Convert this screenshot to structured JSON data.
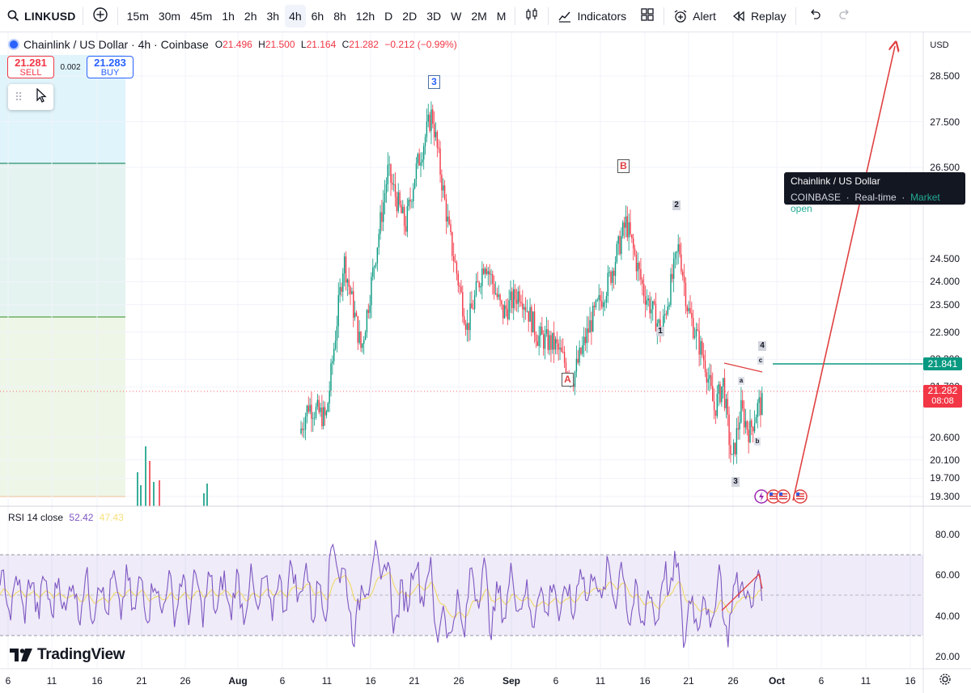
{
  "toolbar": {
    "symbol": "LINKUSD",
    "intervals": [
      "15m",
      "30m",
      "45m",
      "1h",
      "2h",
      "3h",
      "4h",
      "6h",
      "8h",
      "12h",
      "D",
      "2D",
      "3D",
      "W",
      "2M",
      "M"
    ],
    "active_interval": "4h",
    "indicators_label": "Indicators",
    "alert_label": "Alert",
    "replay_label": "Replay"
  },
  "legend": {
    "title": "Chainlink / US Dollar · 4h · Coinbase",
    "o_label": "O",
    "o": "21.496",
    "h_label": "H",
    "h": "21.500",
    "l_label": "L",
    "l": "21.164",
    "c_label": "C",
    "c": "21.282",
    "change": "−0.212 (−0.99%)"
  },
  "trade": {
    "sell_price": "21.281",
    "sell_label": "SELL",
    "spread": "0.002",
    "buy_price": "21.283",
    "buy_label": "BUY"
  },
  "tooltip": {
    "title": "Chainlink / US Dollar",
    "exchange": "COINBASE",
    "feed": "Real-time",
    "status": "Market open"
  },
  "currency": "USD",
  "price_scale": [
    "28.500",
    "27.500",
    "26.500",
    "24.500",
    "24.000",
    "23.500",
    "22.900",
    "22.300",
    "21.700",
    "20.600",
    "20.100",
    "19.700",
    "19.300"
  ],
  "price_tags": {
    "level": "21.841",
    "last": "21.282",
    "countdown": "08:08"
  },
  "rsi": {
    "label": "RSI 14 close",
    "value": "52.42",
    "ma_value": "47.43",
    "scale": [
      "80.00",
      "60.00",
      "40.00",
      "20.00"
    ]
  },
  "brand": "TradingView",
  "time_axis": [
    "6",
    "11",
    "16",
    "21",
    "26",
    "Aug",
    "6",
    "11",
    "16",
    "21",
    "26",
    "Sep",
    "6",
    "11",
    "16",
    "21",
    "26",
    "Oct",
    "6",
    "11",
    "16"
  ],
  "wave_labels": {
    "w3_top": "3",
    "wB": "B",
    "wA": "A",
    "w2": "2",
    "w1": "1",
    "w3_low": "3",
    "w4": "4",
    "wa": "a",
    "wb": "b",
    "wc": "c"
  },
  "chart_data": {
    "type": "candlestick",
    "symbol": "Chainlink / US Dollar",
    "interval": "4h",
    "currency": "USD",
    "ohlc_last": {
      "open": 21.496,
      "high": 21.5,
      "low": 21.164,
      "close": 21.282,
      "change": -0.212,
      "change_pct": -0.99
    },
    "ylim": [
      19.3,
      28.9
    ],
    "horizontal_levels": [
      {
        "price": 21.841,
        "color": "#089981"
      },
      {
        "price": 21.282,
        "color": "#f23645"
      }
    ],
    "x_ticks": [
      "6",
      "11",
      "16",
      "21",
      "26",
      "Aug",
      "6",
      "11",
      "16",
      "21",
      "26",
      "Sep",
      "6",
      "11",
      "16",
      "21",
      "26",
      "Oct",
      "6",
      "11",
      "16"
    ],
    "approx_close_path": [
      {
        "x": "Aug 6",
        "y": 19.5
      },
      {
        "x": "Aug 9",
        "y": 21.3
      },
      {
        "x": "Aug 11",
        "y": 21.0
      },
      {
        "x": "Aug 13",
        "y": 24.5
      },
      {
        "x": "Aug 15",
        "y": 22.5
      },
      {
        "x": "Aug 18",
        "y": 26.4
      },
      {
        "x": "Aug 20",
        "y": 25.2
      },
      {
        "x": "Aug 21",
        "y": 26.3
      },
      {
        "x": "Aug 23",
        "y": 27.7
      },
      {
        "x": "Aug 25",
        "y": 25.0
      },
      {
        "x": "Aug 27",
        "y": 23.0
      },
      {
        "x": "Aug 29",
        "y": 24.5
      },
      {
        "x": "Aug 31",
        "y": 23.3
      },
      {
        "x": "Sep 2",
        "y": 23.8
      },
      {
        "x": "Sep 4",
        "y": 22.8
      },
      {
        "x": "Sep 6",
        "y": 22.6
      },
      {
        "x": "Sep 8",
        "y": 21.9
      },
      {
        "x": "Sep 10",
        "y": 23.1
      },
      {
        "x": "Sep 12",
        "y": 24.0
      },
      {
        "x": "Sep 14",
        "y": 25.3
      },
      {
        "x": "Sep 16",
        "y": 23.8
      },
      {
        "x": "Sep 18",
        "y": 22.9
      },
      {
        "x": "Sep 20",
        "y": 24.8
      },
      {
        "x": "Sep 21",
        "y": 23.4
      },
      {
        "x": "Sep 23",
        "y": 22.2
      },
      {
        "x": "Sep 24",
        "y": 21.2
      },
      {
        "x": "Sep 25",
        "y": 21.8
      },
      {
        "x": "Sep 26",
        "y": 20.0
      },
      {
        "x": "Sep 27",
        "y": 21.2
      },
      {
        "x": "Sep 28",
        "y": 20.7
      },
      {
        "x": "Sep 29",
        "y": 21.3
      }
    ],
    "rsi": {
      "period": 14,
      "source": "close",
      "value": 52.42,
      "ma": 47.43,
      "ylim": [
        16,
        92
      ],
      "bands": [
        70,
        50,
        30
      ]
    }
  }
}
